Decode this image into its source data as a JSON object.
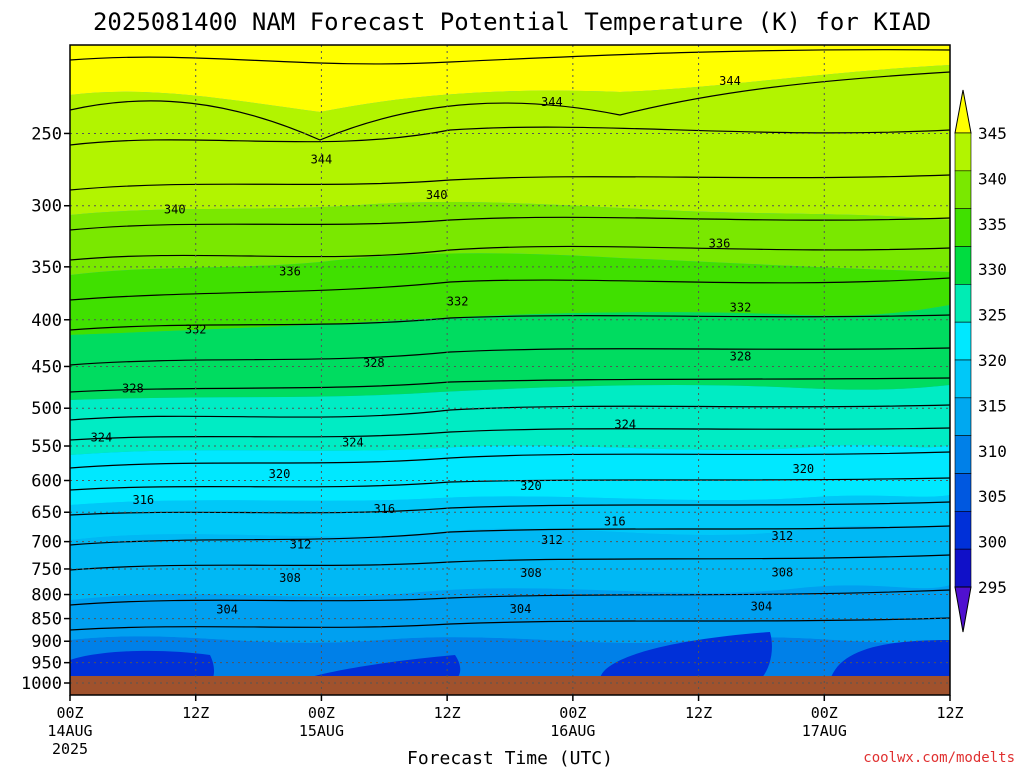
{
  "title": "2025081400 NAM Forecast Potential Temperature (K) for KIAD",
  "xlabel": "Forecast Time (UTC)",
  "credit": "coolwx.com/modelts",
  "chart_data": {
    "type": "contour",
    "title": "2025081400 NAM Forecast Potential Temperature (K) for KIAD",
    "xlabel": "Forecast Time (UTC)",
    "ylabel": "",
    "x_ticks": [
      {
        "label": "00Z",
        "date": "14AUG",
        "year": "2025",
        "hour": 0
      },
      {
        "label": "12Z",
        "hour": 12
      },
      {
        "label": "00Z",
        "date": "15AUG",
        "hour": 24
      },
      {
        "label": "12Z",
        "hour": 36
      },
      {
        "label": "00Z",
        "date": "16AUG",
        "hour": 48
      },
      {
        "label": "12Z",
        "hour": 60
      },
      {
        "label": "00Z",
        "date": "17AUG",
        "hour": 72
      },
      {
        "label": "12Z",
        "hour": 84
      }
    ],
    "y_ticks": [
      250,
      300,
      350,
      400,
      450,
      500,
      550,
      600,
      650,
      700,
      750,
      800,
      850,
      900,
      950,
      1000
    ],
    "y_scale": "log-pressure",
    "y_range_hpa": [
      200,
      1000
    ],
    "x_range_hours": [
      0,
      84
    ],
    "grid": "dotted",
    "colorbar": {
      "labels": [
        345,
        340,
        335,
        330,
        325,
        320,
        315,
        310,
        305,
        300,
        295
      ],
      "colors": [
        "#ffff00",
        "#b2f400",
        "#7ae800",
        "#40e000",
        "#00dc40",
        "#00ecb4",
        "#00e8ff",
        "#00c8f8",
        "#00a8f0",
        "#0080e8",
        "#0058e0",
        "#0030d8",
        "#1010c8",
        "#5010d0"
      ]
    },
    "contour_labels": [
      {
        "value": 344,
        "hour": 46,
        "hpa": 231
      },
      {
        "value": 344,
        "hour": 63,
        "hpa": 219
      },
      {
        "value": 344,
        "hour": 24,
        "hpa": 267
      },
      {
        "value": 340,
        "hour": 10,
        "hpa": 303
      },
      {
        "value": 340,
        "hour": 35,
        "hpa": 292
      },
      {
        "value": 336,
        "hour": 21,
        "hpa": 354
      },
      {
        "value": 336,
        "hour": 62,
        "hpa": 330
      },
      {
        "value": 332,
        "hour": 12,
        "hpa": 410
      },
      {
        "value": 332,
        "hour": 37,
        "hpa": 382
      },
      {
        "value": 332,
        "hour": 64,
        "hpa": 388
      },
      {
        "value": 328,
        "hour": 6,
        "hpa": 476
      },
      {
        "value": 328,
        "hour": 29,
        "hpa": 446
      },
      {
        "value": 328,
        "hour": 64,
        "hpa": 439
      },
      {
        "value": 324,
        "hour": 3,
        "hpa": 538
      },
      {
        "value": 324,
        "hour": 27,
        "hpa": 545
      },
      {
        "value": 324,
        "hour": 53,
        "hpa": 521
      },
      {
        "value": 320,
        "hour": 20,
        "hpa": 590
      },
      {
        "value": 320,
        "hour": 44,
        "hpa": 608
      },
      {
        "value": 320,
        "hour": 70,
        "hpa": 583
      },
      {
        "value": 316,
        "hour": 7,
        "hpa": 630
      },
      {
        "value": 316,
        "hour": 30,
        "hpa": 645
      },
      {
        "value": 316,
        "hour": 52,
        "hpa": 665
      },
      {
        "value": 312,
        "hour": 22,
        "hpa": 705
      },
      {
        "value": 312,
        "hour": 46,
        "hpa": 697
      },
      {
        "value": 312,
        "hour": 68,
        "hpa": 690
      },
      {
        "value": 308,
        "hour": 21,
        "hpa": 767
      },
      {
        "value": 308,
        "hour": 44,
        "hpa": 758
      },
      {
        "value": 308,
        "hour": 68,
        "hpa": 757
      },
      {
        "value": 304,
        "hour": 15,
        "hpa": 831
      },
      {
        "value": 304,
        "hour": 43,
        "hpa": 830
      },
      {
        "value": 304,
        "hour": 66,
        "hpa": 825
      }
    ]
  }
}
